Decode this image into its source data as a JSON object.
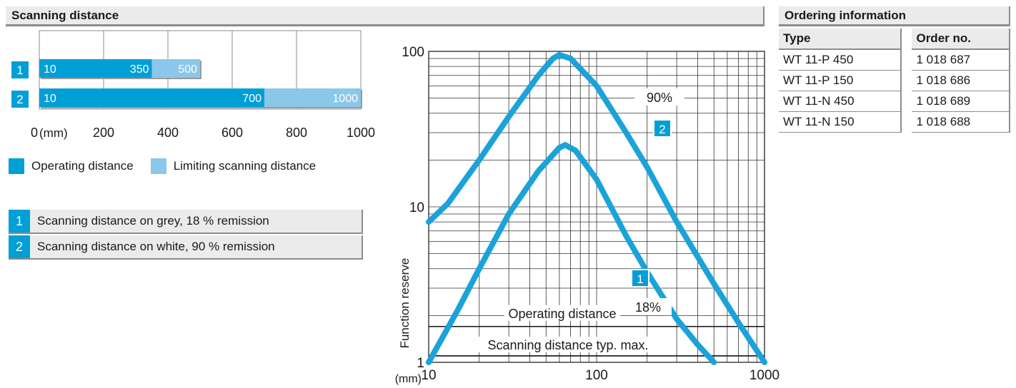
{
  "header": {
    "scanning_distance": "Scanning distance",
    "ordering_information": "Ordering information"
  },
  "colors": {
    "operating": "#009fd6",
    "limiting": "#8bc7e8",
    "curve": "#1ba3d9",
    "header_bg": "#ebebeb"
  },
  "chart_data": [
    {
      "type": "bar",
      "orientation": "horizontal",
      "unit_label": "(mm)",
      "xlim": [
        0,
        1000
      ],
      "ticks": [
        0,
        200,
        400,
        600,
        800,
        1000
      ],
      "legend": [
        {
          "label": "Operating distance",
          "color": "#009fd6"
        },
        {
          "label": "Limiting scanning distance",
          "color": "#8bc7e8"
        }
      ],
      "rows": [
        {
          "badge": "1",
          "start": 10,
          "operating": 350,
          "limiting": 500
        },
        {
          "badge": "2",
          "start": 10,
          "operating": 700,
          "limiting": 1000
        }
      ]
    },
    {
      "type": "line",
      "x_scale": "log",
      "y_scale": "log",
      "xlim": [
        10,
        1000
      ],
      "ylim": [
        1,
        100
      ],
      "x_ticks": [
        10,
        100,
        1000
      ],
      "y_ticks": [
        1,
        10,
        100
      ],
      "x_unit": "(mm)",
      "ylabel": "Function reserve",
      "reference_lines": [
        {
          "label": "Operating distance",
          "y": 1.7
        },
        {
          "label": "Scanning distance typ. max.",
          "y": 1.1
        }
      ],
      "series": [
        {
          "badge": "2",
          "annotation": "90%",
          "x": [
            10,
            13,
            20,
            30,
            45,
            55,
            60,
            70,
            100,
            150,
            200,
            300,
            500,
            700,
            1000
          ],
          "y": [
            8,
            10.5,
            20,
            38,
            70,
            90,
            95,
            90,
            60,
            30,
            18,
            8,
            3.2,
            1.8,
            1
          ]
        },
        {
          "badge": "1",
          "annotation": "18%",
          "x": [
            10,
            15,
            20,
            30,
            45,
            60,
            65,
            75,
            100,
            150,
            200,
            300,
            400,
            500
          ],
          "y": [
            1,
            2.2,
            4,
            9,
            17,
            24,
            25,
            23,
            15,
            6.5,
            3.8,
            1.9,
            1.3,
            1
          ]
        }
      ]
    }
  ],
  "notes": [
    {
      "badge": "1",
      "text": "Scanning distance on grey, 18 % remission"
    },
    {
      "badge": "2",
      "text": "Scanning distance on white, 90 % remission"
    }
  ],
  "ordering": {
    "columns": [
      "Type",
      "Order no."
    ],
    "rows": [
      [
        "WT 11-P 450",
        "1 018 687"
      ],
      [
        "WT 11-P 150",
        "1 018 686"
      ],
      [
        "WT 11-N 450",
        "1 018 689"
      ],
      [
        "WT 11-N 150",
        "1 018 688"
      ]
    ]
  }
}
